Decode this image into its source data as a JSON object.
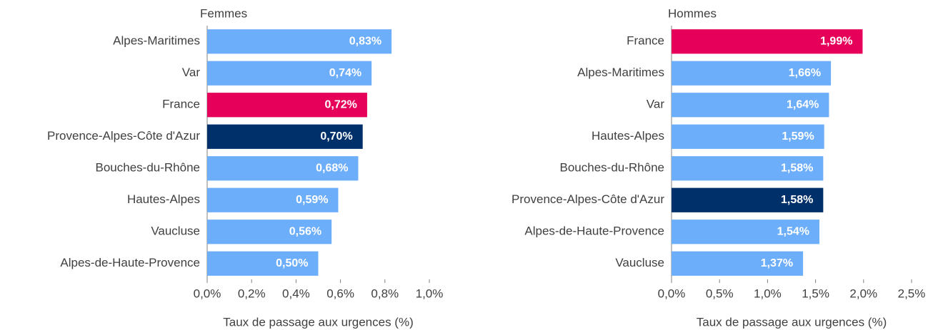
{
  "chart_data": [
    {
      "type": "bar",
      "orientation": "horizontal",
      "title": "Femmes",
      "categories": [
        "Alpes-Maritimes",
        "Var",
        "France",
        "Provence-Alpes-Côte d'Azur",
        "Bouches-du-Rhône",
        "Hautes-Alpes",
        "Vaucluse",
        "Alpes-de-Haute-Provence"
      ],
      "values": [
        0.83,
        0.74,
        0.72,
        0.7,
        0.68,
        0.59,
        0.56,
        0.5
      ],
      "value_labels": [
        "0,83%",
        "0,74%",
        "0,72%",
        "0,70%",
        "0,68%",
        "0,59%",
        "0,56%",
        "0,50%"
      ],
      "colors": [
        "#6daefa",
        "#6daefa",
        "#e6005a",
        "#00306a",
        "#6daefa",
        "#6daefa",
        "#6daefa",
        "#6daefa"
      ],
      "xlim": [
        0,
        1
      ],
      "xticks": [
        {
          "value": 0,
          "label": "0,0%"
        },
        {
          "value": 0.2,
          "label": "0,2%"
        },
        {
          "value": 0.4,
          "label": "0,4%"
        },
        {
          "value": 0.6,
          "label": "0,6%"
        },
        {
          "value": 0.8,
          "label": "0,8%"
        },
        {
          "value": 1,
          "label": "1,0%"
        }
      ],
      "x_label": "Taux de passage aux urgences (%)"
    },
    {
      "type": "bar",
      "orientation": "horizontal",
      "title": "Hommes",
      "categories": [
        "France",
        "Alpes-Maritimes",
        "Var",
        "Hautes-Alpes",
        "Bouches-du-Rhône",
        "Provence-Alpes-Côte d'Azur",
        "Alpes-de-Haute-Provence",
        "Vaucluse"
      ],
      "values": [
        1.99,
        1.66,
        1.64,
        1.59,
        1.58,
        1.58,
        1.54,
        1.37
      ],
      "value_labels": [
        "1,99%",
        "1,66%",
        "1,64%",
        "1,59%",
        "1,58%",
        "1,58%",
        "1,54%",
        "1,37%"
      ],
      "colors": [
        "#e6005a",
        "#6daefa",
        "#6daefa",
        "#6daefa",
        "#6daefa",
        "#00306a",
        "#6daefa",
        "#6daefa"
      ],
      "xlim": [
        0,
        2.5
      ],
      "xticks": [
        {
          "value": 0,
          "label": "0,0%"
        },
        {
          "value": 0.5,
          "label": "0,5%"
        },
        {
          "value": 1,
          "label": "1,0%"
        },
        {
          "value": 1.5,
          "label": "1,5%"
        },
        {
          "value": 2,
          "label": "2,0%"
        },
        {
          "value": 2.5,
          "label": "2,5%"
        }
      ],
      "x_label": "Taux de passage aux urgences (%)"
    }
  ]
}
